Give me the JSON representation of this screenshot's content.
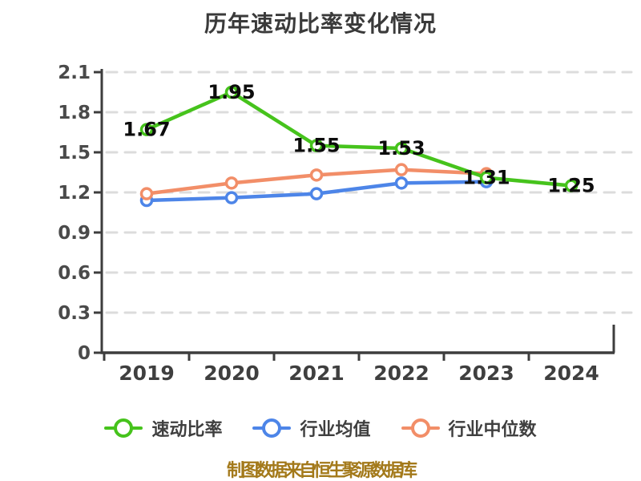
{
  "title": {
    "text": "历年速动比率变化情况"
  },
  "footer": {
    "text": "制图数据来自恒生聚源数据库"
  },
  "colors": {
    "quick_ratio": "#46c31c",
    "industry_avg": "#4d85e8",
    "industry_median": "#f28e68",
    "axis": "#3d3d3d",
    "grid": "#dcdcdc",
    "tick_label": "#4a4a4a",
    "x_label": "#3f3f3f",
    "data_label": "#0c0c0c",
    "title_color": "#3a3a3a",
    "legend_label": "#3f3f3f",
    "footer_color": "#a3791a"
  },
  "legend": {
    "items": [
      {
        "id": "quick-ratio",
        "label": "速动比率",
        "color_key": "quick_ratio"
      },
      {
        "id": "industry-avg",
        "label": "行业均值",
        "color_key": "industry_avg"
      },
      {
        "id": "industry-median",
        "label": "行业中位数",
        "color_key": "industry_median"
      }
    ]
  },
  "chart_data": {
    "type": "line",
    "title": "历年速动比率变化情况",
    "categories": [
      "2019",
      "2020",
      "2021",
      "2022",
      "2023",
      "2024"
    ],
    "ylim": [
      0,
      2.1
    ],
    "yticks": [
      0,
      0.3,
      0.6,
      0.9,
      1.2,
      1.5,
      1.8,
      2.1
    ],
    "ytick_labels": [
      "0",
      "0.3",
      "0.6",
      "0.9",
      "1.2",
      "1.5",
      "1.8",
      "2.1"
    ],
    "grid": "horizontal-dashed",
    "legend_position": "bottom",
    "series": [
      {
        "id": "quick-ratio",
        "name": "速动比率",
        "color_key": "quick_ratio",
        "values": [
          1.67,
          1.95,
          1.55,
          1.53,
          1.31,
          1.25
        ],
        "point_labels": [
          "1.67",
          "1.95",
          "1.55",
          "1.53",
          "1.31",
          "1.25"
        ]
      },
      {
        "id": "industry-avg",
        "name": "行业均值",
        "color_key": "industry_avg",
        "values": [
          1.14,
          1.16,
          1.19,
          1.27,
          1.28,
          null
        ]
      },
      {
        "id": "industry-median",
        "name": "行业中位数",
        "color_key": "industry_median",
        "values": [
          1.19,
          1.27,
          1.33,
          1.37,
          1.34,
          null
        ]
      }
    ]
  }
}
